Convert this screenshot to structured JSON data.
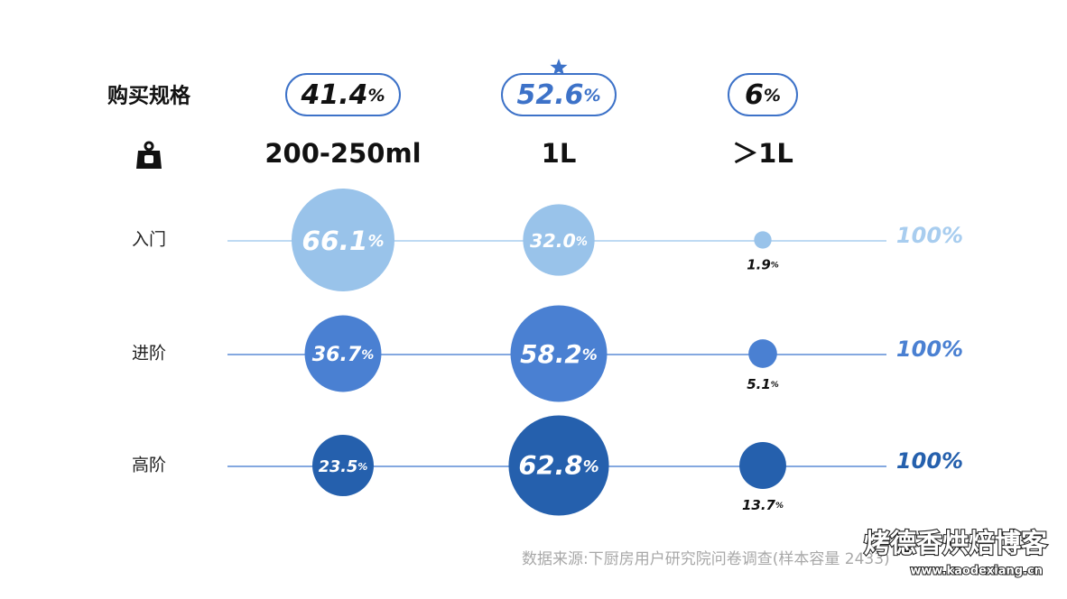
{
  "chart_data": {
    "type": "bubble",
    "title": "购买规格",
    "header_icon": "weight-icon",
    "columns": [
      {
        "label": "200-250ml",
        "share_value": 41.4,
        "share_text": "41.4",
        "unit": "%",
        "highlighted": false
      },
      {
        "label": "1L",
        "share_value": 52.6,
        "share_text": "52.6",
        "unit": "%",
        "highlighted": true
      },
      {
        "label": "＞1L",
        "share_value": 6,
        "share_text": "6",
        "unit": "%",
        "highlighted": false
      }
    ],
    "rows": [
      {
        "label": "入门",
        "color": "#99c3ea",
        "total_text": "100%",
        "values": [
          66.1,
          32.0,
          1.9
        ],
        "value_texts": [
          "66.1",
          "32.0",
          "1.9"
        ],
        "unit": "%"
      },
      {
        "label": "进阶",
        "color": "#4a80d2",
        "total_text": "100%",
        "values": [
          36.7,
          58.2,
          5.1
        ],
        "value_texts": [
          "36.7",
          "58.2",
          "5.1"
        ],
        "unit": "%"
      },
      {
        "label": "高阶",
        "color": "#2560ad",
        "total_text": "100%",
        "values": [
          23.5,
          62.8,
          13.7
        ],
        "value_texts": [
          "23.5",
          "62.8",
          "13.7"
        ],
        "unit": "%"
      }
    ],
    "colors": {
      "highlight": "#3d72c8",
      "text": "#111111",
      "line_light": "#a8cdef",
      "line_dark": "#5b8bd6"
    }
  },
  "footer": {
    "source": "数据来源:下厨房用户研究院问卷调查(样本容量 2433)",
    "watermark_name": "烤德香烘焙博客",
    "watermark_url": "www.kaodexiang.cn"
  }
}
